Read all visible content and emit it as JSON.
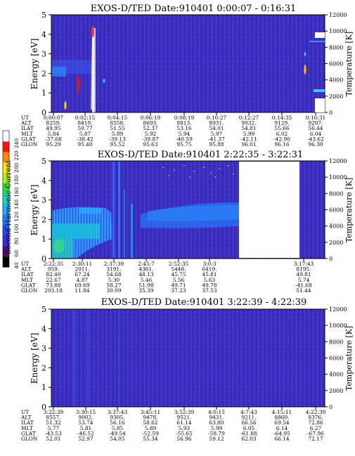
{
  "chart_data": [
    {
      "type": "heatmap",
      "title": "EXOS-D/TED   Date:910401   0:00:07 - 0:16:31",
      "ylabel": "Energy [eV]",
      "y2label": "Temperature [K]",
      "ylim": [
        0,
        5
      ],
      "y2lim": [
        0,
        12000
      ],
      "yticks": [
        "0",
        "1",
        "2",
        "3",
        "4",
        "5"
      ],
      "y2ticks": [
        "0",
        "2000",
        "4000",
        "6000",
        "8000",
        "10000",
        "12000"
      ],
      "row_labels": [
        "UT",
        "ALT",
        "ILAT",
        "MLT",
        "GLAT",
        "GLON"
      ],
      "columns": [
        [
          "0:00:07",
          "8259.",
          "49.95",
          "5.84",
          "-37.68",
          "95.29"
        ],
        [
          "0:02:15",
          "8419.",
          "50.77",
          "5.87",
          "-38.42",
          "95.40"
        ],
        [
          "0:04:15",
          "8558.",
          "51.55",
          "5.89",
          "-39.13",
          "95.52"
        ],
        [
          "0:06:19",
          "8693.",
          "52.37",
          "5.92",
          "-39.87",
          "95.63"
        ],
        [
          "0:08:19",
          "8813.",
          "53.16",
          "5.94",
          "-40.59",
          "95.75"
        ],
        [
          "0:10:27",
          "8931.",
          "54.01",
          "5.97",
          "-41.37",
          "95.88"
        ],
        [
          "0:12:27",
          "9032.",
          "54.81",
          "5.99",
          "-42.11",
          "96.01"
        ],
        [
          "0:14:35",
          "9129.",
          "55.66",
          "6.02",
          "-42.90",
          "96.16"
        ],
        [
          "0:16:31",
          "9207.",
          "56.44",
          "6.04",
          "-43.62",
          "96.30"
        ]
      ]
    },
    {
      "type": "heatmap",
      "title": "EXOS-D/TED   Date:910401   2:22:35 - 3:22:31",
      "ylabel": "Energy [eV]",
      "y2label": "Temperature [K]",
      "ylim": [
        0,
        5
      ],
      "y2lim": [
        0,
        12000
      ],
      "yticks": [
        "0",
        "1",
        "2",
        "3",
        "4",
        "5"
      ],
      "y2ticks": [
        "0",
        "2000",
        "4000",
        "6000",
        "8000",
        "10000",
        "12000"
      ],
      "row_labels": [
        "UT",
        "ALT",
        "ILAT",
        "MLT",
        "GLAT",
        "GLON"
      ],
      "columns": [
        [
          "2:22:35",
          "959.",
          "82.40",
          "22.67",
          "73.88",
          "293.18"
        ],
        [
          "2:30:11",
          "2011.",
          "67.24",
          "4.87",
          "69.69",
          "11.84"
        ],
        [
          "2:37:39",
          "3191.",
          "54.68",
          "5.30",
          "58.27",
          "30.09"
        ],
        [
          "2:45:7",
          "4361.",
          "48.13",
          "5.46",
          "51.98",
          "35.39"
        ],
        [
          "2:52:35",
          "5448.",
          "45.75",
          "5.56",
          "49.71",
          "37.23"
        ],
        [
          "3:0:3",
          "6419.",
          "45.81",
          "5.63",
          "49.78",
          "37.53"
        ],
        [
          "3:17:43",
          "8195.",
          "49.81",
          "5.74",
          "-41.68",
          "51.44"
        ]
      ]
    },
    {
      "type": "heatmap",
      "title": "EXOS-D/TED   Date:910401   3:22:39 - 4:22:39",
      "ylabel": "Energy [eV]",
      "y2label": "Temperature [K]",
      "ylim": [
        0,
        5
      ],
      "y2lim": [
        0,
        12000
      ],
      "yticks": [
        "0",
        "1",
        "2",
        "3",
        "4",
        "5"
      ],
      "y2ticks": [
        "0",
        "2000",
        "4000",
        "6000",
        "8000",
        "10000",
        "12000"
      ],
      "row_labels": [
        "UT",
        "ALT",
        "ILAT",
        "MLT",
        "GLAT",
        "GLON"
      ],
      "columns": [
        [
          "3:22:39",
          "8557.",
          "51.32",
          "5.77",
          "-43.53",
          "52.01"
        ],
        [
          "3:30:15",
          "9002.",
          "53.74",
          "5.81",
          "-46.52",
          "52.97"
        ],
        [
          "3:37:43",
          "9305.",
          "56.16",
          "5.85",
          "-49.54",
          "54.05"
        ],
        [
          "3:45:11",
          "9478.",
          "58.62",
          "5.89",
          "-52.59",
          "55.34"
        ],
        [
          "3:52:39",
          "9521.",
          "61.14",
          "5.93",
          "-55.65",
          "56.96"
        ],
        [
          "4:0:15",
          "9431.",
          "63.80",
          "5.99",
          "-58.79",
          "59.12"
        ],
        [
          "4:7:43",
          "9211.",
          "66.56",
          "6.05",
          "-61.88",
          "62.03"
        ],
        [
          "4:15:11",
          "8860.",
          "69.54",
          "6.14",
          "-64.95",
          "66.14"
        ],
        [
          "4:22:39",
          "8376.",
          "72.86",
          "6.27",
          "-67.96",
          "72.17"
        ]
      ]
    }
  ],
  "colorbar": {
    "label": "Second Harmonic Current",
    "ticks": [
      "40",
      "60",
      "80",
      "100",
      "120",
      "140",
      "160",
      "180",
      "200",
      "220",
      "240"
    ],
    "colors": [
      "#000000",
      "#5a0070",
      "#3c2ad8",
      "#1a4df0",
      "#1780ff",
      "#14b4ff",
      "#12d8c8",
      "#20e040",
      "#b8f000",
      "#ffe600",
      "#ff8800",
      "#ff1010",
      "#ffffff"
    ]
  },
  "colors": {
    "background": "#3a2fc0",
    "noise": "#4a3ee0",
    "bright": "#33b8ff"
  }
}
